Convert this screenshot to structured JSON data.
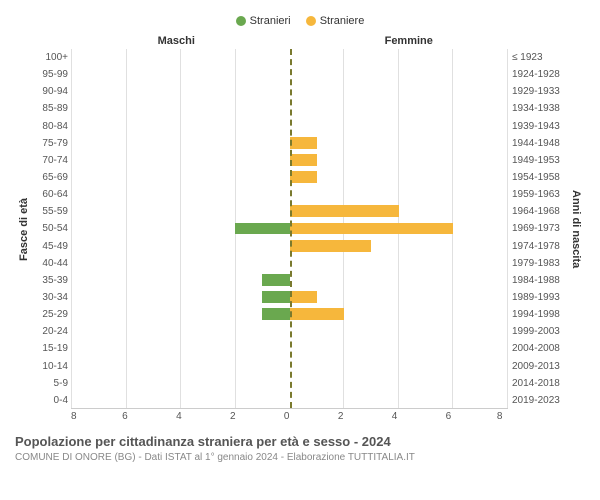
{
  "legend": {
    "male": {
      "label": "Stranieri",
      "color": "#6aa84f"
    },
    "female": {
      "label": "Straniere",
      "color": "#f6b73c"
    }
  },
  "headers": {
    "left": "Maschi",
    "right": "Femmine"
  },
  "axis_labels": {
    "left": "Fasce di età",
    "right": "Anni di nascita"
  },
  "xaxis": {
    "max": 8,
    "ticks_left": [
      "8",
      "6",
      "4",
      "2",
      "0"
    ],
    "ticks_right": [
      "0",
      "2",
      "4",
      "6",
      "8"
    ]
  },
  "grid_color": "#e0e0e0",
  "center_line_color": "#7a7a2e",
  "background_color": "#ffffff",
  "rows": [
    {
      "age": "100+",
      "year": "≤ 1923",
      "m": 0,
      "f": 0
    },
    {
      "age": "95-99",
      "year": "1924-1928",
      "m": 0,
      "f": 0
    },
    {
      "age": "90-94",
      "year": "1929-1933",
      "m": 0,
      "f": 0
    },
    {
      "age": "85-89",
      "year": "1934-1938",
      "m": 0,
      "f": 0
    },
    {
      "age": "80-84",
      "year": "1939-1943",
      "m": 0,
      "f": 0
    },
    {
      "age": "75-79",
      "year": "1944-1948",
      "m": 0,
      "f": 1
    },
    {
      "age": "70-74",
      "year": "1949-1953",
      "m": 0,
      "f": 1
    },
    {
      "age": "65-69",
      "year": "1954-1958",
      "m": 0,
      "f": 1
    },
    {
      "age": "60-64",
      "year": "1959-1963",
      "m": 0,
      "f": 0
    },
    {
      "age": "55-59",
      "year": "1964-1968",
      "m": 0,
      "f": 4
    },
    {
      "age": "50-54",
      "year": "1969-1973",
      "m": 2,
      "f": 6
    },
    {
      "age": "45-49",
      "year": "1974-1978",
      "m": 0,
      "f": 3
    },
    {
      "age": "40-44",
      "year": "1979-1983",
      "m": 0,
      "f": 0
    },
    {
      "age": "35-39",
      "year": "1984-1988",
      "m": 1,
      "f": 0
    },
    {
      "age": "30-34",
      "year": "1989-1993",
      "m": 1,
      "f": 1
    },
    {
      "age": "25-29",
      "year": "1994-1998",
      "m": 1,
      "f": 2
    },
    {
      "age": "20-24",
      "year": "1999-2003",
      "m": 0,
      "f": 0
    },
    {
      "age": "15-19",
      "year": "2004-2008",
      "m": 0,
      "f": 0
    },
    {
      "age": "10-14",
      "year": "2009-2013",
      "m": 0,
      "f": 0
    },
    {
      "age": "5-9",
      "year": "2014-2018",
      "m": 0,
      "f": 0
    },
    {
      "age": "0-4",
      "year": "2019-2023",
      "m": 0,
      "f": 0
    }
  ],
  "title": "Popolazione per cittadinanza straniera per età e sesso - 2024",
  "subtitle": "COMUNE DI ONORE (BG) - Dati ISTAT al 1° gennaio 2024 - Elaborazione TUTTITALIA.IT"
}
